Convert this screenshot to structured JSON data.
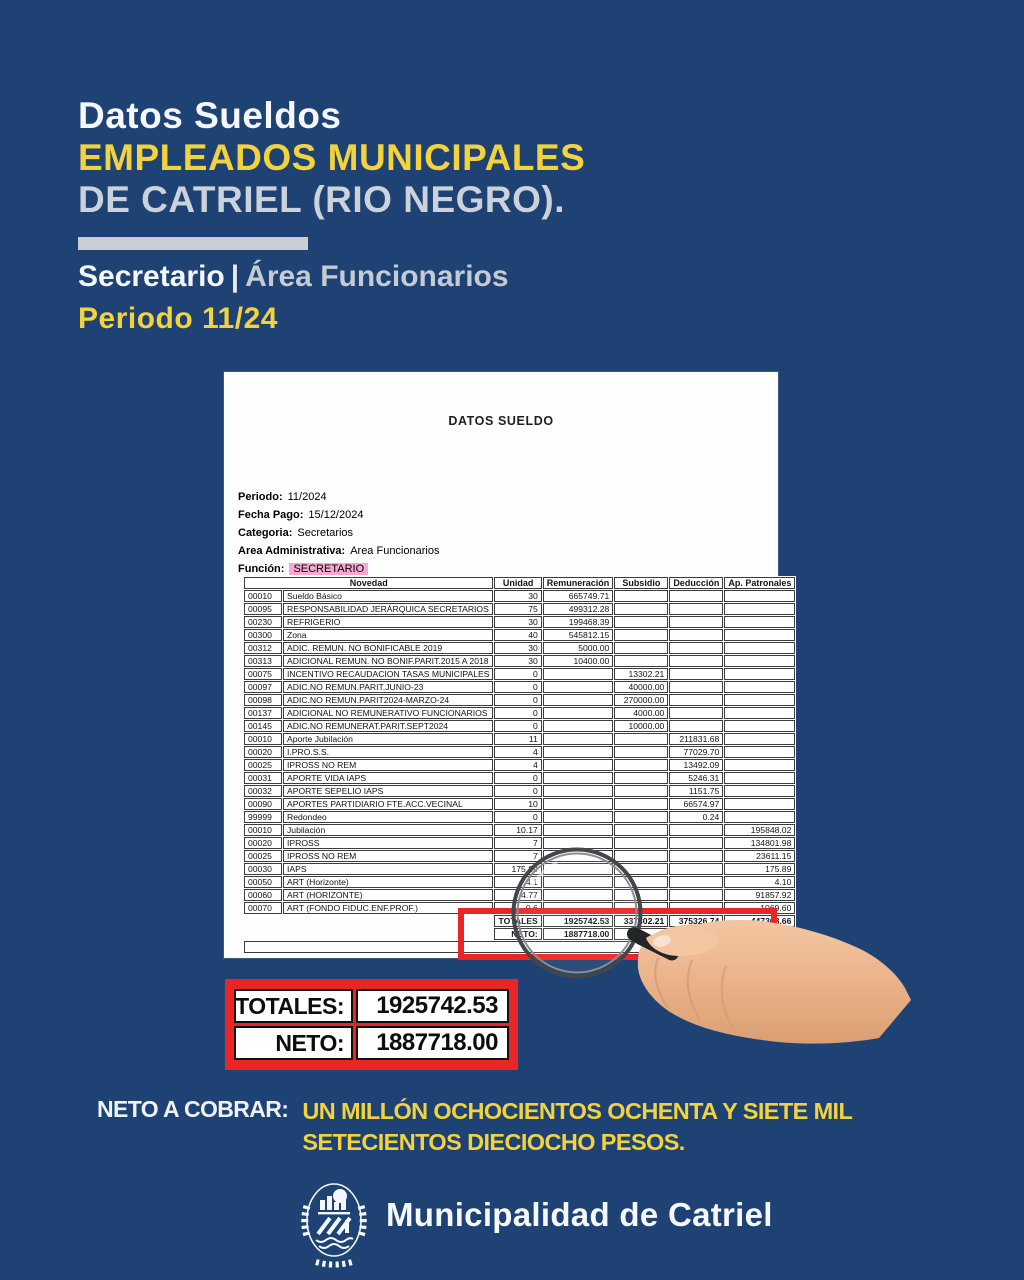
{
  "colors": {
    "background": "#1d4273",
    "accent_yellow": "#f2d33e",
    "accent_red": "#e92525",
    "light_gray": "#ccd2dc",
    "highlight_pink": "#f7a8d2"
  },
  "header": {
    "title_line1": "Datos Sueldos",
    "title_line2": "EMPLEADOS MUNICIPALES",
    "title_line3": "DE CATRIEL (RIO NEGRO).",
    "subtitle_left": "Secretario",
    "subtitle_separator": "|",
    "subtitle_right": "Área Funcionarios",
    "period": "Periodo 11/24"
  },
  "doc": {
    "title": "DATOS SUELDO",
    "meta": [
      {
        "label": "Periodo:",
        "value": "11/2024"
      },
      {
        "label": "Fecha Pago:",
        "value": "15/12/2024"
      },
      {
        "label": "Categoria:",
        "value": "Secretarios"
      },
      {
        "label": "Area Administrativa:",
        "value": "Area Funcionarios"
      },
      {
        "label": "Función:",
        "value": "SECRETARIO"
      }
    ],
    "table": {
      "headers": [
        "Novedad",
        "Unidad",
        "Remuneración",
        "Subsidio",
        "Deducción",
        "Ap. Patronales"
      ],
      "rows": [
        [
          "00010",
          "Sueldo Básico",
          "30",
          "665749.71",
          "",
          "",
          ""
        ],
        [
          "00095",
          "RESPONSABILIDAD JERÁRQUICA SECRETARIOS",
          "75",
          "499312.28",
          "",
          "",
          ""
        ],
        [
          "00230",
          "REFRIGERIO",
          "30",
          "199468.39",
          "",
          "",
          ""
        ],
        [
          "00300",
          "Zona",
          "40",
          "545812.15",
          "",
          "",
          ""
        ],
        [
          "00312",
          "ADIC. REMUN. NO BONIFICABLE 2019",
          "30",
          "5000.00",
          "",
          "",
          ""
        ],
        [
          "00313",
          "ADICIONAL REMUN. NO BONIF.PARIT.2015 A 2018",
          "30",
          "10400.00",
          "",
          "",
          ""
        ],
        [
          "00075",
          "INCENTIVO RECAUDACION TASAS MUNICIPALES",
          "0",
          "",
          "13302.21",
          "",
          ""
        ],
        [
          "00097",
          "ADIC.NO REMUN.PARIT.JUNIO-23",
          "0",
          "",
          "40000.00",
          "",
          ""
        ],
        [
          "00098",
          "ADIC.NO REMUN.PARIT2024-MARZO-24",
          "0",
          "",
          "270000.00",
          "",
          ""
        ],
        [
          "00137",
          "ADICIONAL NO REMUNERATIVO FUNCIONARIOS",
          "0",
          "",
          "4000.00",
          "",
          ""
        ],
        [
          "00145",
          "ADIC.NO REMUNERAT.PARIT.SEPT2024",
          "0",
          "",
          "10000.00",
          "",
          ""
        ],
        [
          "00010",
          "Aporte Jubilación",
          "11",
          "",
          "",
          "211831.68",
          ""
        ],
        [
          "00020",
          "I.PRO.S.S.",
          "4",
          "",
          "",
          "77029.70",
          ""
        ],
        [
          "00025",
          "IPROSS NO REM",
          "4",
          "",
          "",
          "13492.09",
          ""
        ],
        [
          "00031",
          "APORTE VIDA IAPS",
          "0",
          "",
          "",
          "5246.31",
          ""
        ],
        [
          "00032",
          "APORTE SEPELIO IAPS",
          "0",
          "",
          "",
          "1151.75",
          ""
        ],
        [
          "00090",
          "APORTES PARTIDIARIO FTE.ACC.VECINAL",
          "10",
          "",
          "",
          "66574.97",
          ""
        ],
        [
          "99999",
          "Redondeo",
          "0",
          "",
          "",
          "0.24",
          ""
        ],
        [
          "00010",
          "Jubilación",
          "10.17",
          "",
          "",
          "",
          "195848.02"
        ],
        [
          "00020",
          "IPROSS",
          "7",
          "",
          "",
          "",
          "134801.98"
        ],
        [
          "00025",
          "IPROSS NO REM",
          "7",
          "",
          "",
          "",
          "23611.15"
        ],
        [
          "00030",
          "IAPS",
          "175.89",
          "",
          "",
          "",
          "175.89"
        ],
        [
          "00050",
          "ART (Horizonte)",
          "4.1",
          "",
          "",
          "",
          "4.10"
        ],
        [
          "00060",
          "ART (HORIZONTE)",
          "4.77",
          "",
          "",
          "",
          "91857.92"
        ],
        [
          "00070",
          "ART (FONDO FIDUC.ENF.PROF.)",
          "0.6",
          "",
          "",
          "",
          "1069.60"
        ]
      ],
      "totals": {
        "label": "TOTALES",
        "remuneracion": "1925742.53",
        "subsidio": "337302.21",
        "deduccion": "375326.74",
        "ap_patronales": "447368.66"
      },
      "neto": {
        "label": "NETO:",
        "value": "1887718.00"
      }
    }
  },
  "summary": {
    "rows": [
      {
        "label": "TOTALES:",
        "value": "1925742.53"
      },
      {
        "label": "NETO:",
        "value": "1887718.00"
      }
    ]
  },
  "footer": {
    "neto_label": "NETO A COBRAR:",
    "amount_words": "UN MILLÓN OCHOCIENTOS OCHENTA Y SIETE MIL SETECIENTOS DIECIOCHO PESOS.",
    "org_name": "Municipalidad de Catriel"
  }
}
